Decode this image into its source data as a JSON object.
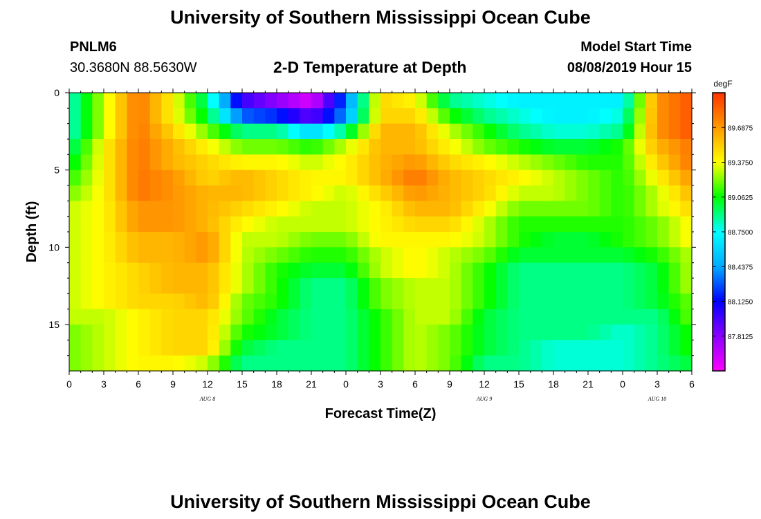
{
  "page": {
    "title_top": "University of Southern Mississippi Ocean Cube",
    "title_bottom": "University of Southern Mississippi Ocean Cube",
    "station_id": "PNLM6",
    "station_coords": "30.3680N 88.5630W",
    "plot_title": "2-D Temperature at Depth",
    "model_start_label": "Model Start Time",
    "model_start_value": "08/08/2019 Hour 15"
  },
  "chart_data": {
    "type": "heatmap",
    "title": "2-D Temperature at Depth",
    "xlabel": "Forecast Time(Z)",
    "ylabel": "Depth (ft)",
    "x_tick_labels": [
      "0",
      "3",
      "6",
      "9",
      "12",
      "15",
      "18",
      "21",
      "0",
      "3",
      "6",
      "9",
      "12",
      "15",
      "18",
      "21",
      "0",
      "3",
      "6"
    ],
    "x_range_hours": [
      0,
      54
    ],
    "date_labels": [
      {
        "label": "AUG 8",
        "hour": 12
      },
      {
        "label": "AUG 9",
        "hour": 36
      },
      {
        "label": "AUG 10",
        "hour": 51
      }
    ],
    "y_tick_labels": [
      "0",
      "5",
      "10",
      "15"
    ],
    "y_range_ft": [
      0,
      18
    ],
    "y_inverted": true,
    "colorbar": {
      "unit": "degF",
      "min": 87.5,
      "max": 90.0,
      "tick_labels": [
        "89.6875",
        "89.3750",
        "89.0625",
        "88.7500",
        "88.4375",
        "88.1250",
        "87.8125"
      ],
      "tick_values": [
        89.6875,
        89.375,
        89.0625,
        88.75,
        88.4375,
        88.125,
        87.8125
      ],
      "colormap": [
        "#ff00ff",
        "#8a00ff",
        "#0000ff",
        "#00aaff",
        "#00ffff",
        "#00ff00",
        "#ffff00",
        "#ff9900",
        "#ff3300"
      ]
    },
    "depth_rows_ft": [
      0.5,
      1.5,
      2.5,
      3.5,
      4.5,
      5.5,
      6.5,
      7.5,
      8.5,
      9.5,
      10.5,
      11.5,
      12.5,
      13.5,
      14.5,
      15.5,
      16.5,
      17.5
    ],
    "time_hours": [
      0,
      3,
      6,
      9,
      12,
      15,
      18,
      21,
      24,
      27,
      30,
      33,
      36,
      39,
      42,
      45,
      48,
      51,
      54
    ],
    "temperature_degF": [
      [
        88.8,
        89.3,
        89.8,
        89.4,
        88.9,
        88.0,
        87.8,
        87.6,
        88.3,
        89.5,
        89.4,
        88.9,
        88.8,
        88.7,
        88.7,
        88.7,
        88.7,
        89.7,
        89.9
      ],
      [
        88.8,
        89.3,
        89.8,
        89.4,
        89.0,
        88.3,
        88.2,
        87.9,
        88.4,
        89.5,
        89.5,
        89.1,
        88.9,
        88.8,
        88.7,
        88.7,
        88.8,
        89.7,
        89.9
      ],
      [
        88.8,
        89.3,
        89.8,
        89.5,
        89.2,
        88.9,
        88.9,
        88.6,
        88.9,
        89.6,
        89.6,
        89.3,
        89.1,
        88.9,
        88.8,
        88.8,
        88.9,
        89.7,
        89.9
      ],
      [
        88.9,
        89.4,
        89.8,
        89.6,
        89.4,
        89.2,
        89.2,
        89.1,
        89.3,
        89.6,
        89.6,
        89.4,
        89.2,
        89.1,
        89.0,
        89.0,
        89.1,
        89.6,
        89.8
      ],
      [
        89.0,
        89.4,
        89.8,
        89.6,
        89.5,
        89.4,
        89.4,
        89.3,
        89.4,
        89.6,
        89.7,
        89.5,
        89.4,
        89.3,
        89.2,
        89.1,
        89.1,
        89.5,
        89.8
      ],
      [
        89.1,
        89.4,
        89.8,
        89.7,
        89.5,
        89.6,
        89.5,
        89.4,
        89.4,
        89.6,
        89.8,
        89.6,
        89.5,
        89.4,
        89.3,
        89.2,
        89.1,
        89.4,
        89.7
      ],
      [
        89.2,
        89.4,
        89.8,
        89.7,
        89.6,
        89.6,
        89.5,
        89.4,
        89.3,
        89.5,
        89.7,
        89.6,
        89.5,
        89.3,
        89.3,
        89.2,
        89.1,
        89.3,
        89.6
      ],
      [
        89.3,
        89.4,
        89.7,
        89.7,
        89.6,
        89.5,
        89.4,
        89.3,
        89.3,
        89.4,
        89.6,
        89.6,
        89.4,
        89.2,
        89.2,
        89.2,
        89.1,
        89.3,
        89.5
      ],
      [
        89.3,
        89.4,
        89.7,
        89.7,
        89.6,
        89.4,
        89.3,
        89.3,
        89.3,
        89.4,
        89.5,
        89.5,
        89.3,
        89.1,
        89.1,
        89.1,
        89.1,
        89.2,
        89.4
      ],
      [
        89.3,
        89.4,
        89.6,
        89.6,
        89.7,
        89.3,
        89.3,
        89.2,
        89.2,
        89.4,
        89.4,
        89.4,
        89.3,
        89.1,
        89.0,
        89.0,
        89.1,
        89.2,
        89.4
      ],
      [
        89.3,
        89.4,
        89.6,
        89.6,
        89.7,
        89.3,
        89.2,
        89.1,
        89.1,
        89.3,
        89.4,
        89.3,
        89.2,
        89.0,
        89.0,
        89.0,
        89.0,
        89.1,
        89.3
      ],
      [
        89.3,
        89.4,
        89.5,
        89.6,
        89.6,
        89.3,
        89.1,
        89.0,
        89.0,
        89.3,
        89.4,
        89.3,
        89.1,
        88.9,
        88.9,
        88.9,
        88.9,
        89.0,
        89.3
      ],
      [
        89.3,
        89.4,
        89.5,
        89.6,
        89.6,
        89.3,
        89.1,
        88.9,
        88.9,
        89.2,
        89.3,
        89.3,
        89.1,
        88.9,
        88.9,
        88.9,
        88.9,
        89.0,
        89.3
      ],
      [
        89.3,
        89.4,
        89.5,
        89.5,
        89.6,
        89.2,
        89.1,
        88.9,
        88.9,
        89.2,
        89.3,
        89.3,
        89.1,
        88.9,
        88.9,
        88.9,
        88.9,
        89.0,
        89.2
      ],
      [
        89.3,
        89.3,
        89.4,
        89.5,
        89.5,
        89.2,
        89.0,
        88.9,
        88.9,
        89.1,
        89.3,
        89.3,
        89.0,
        88.9,
        88.9,
        88.9,
        88.9,
        88.9,
        89.2
      ],
      [
        89.2,
        89.3,
        89.4,
        89.5,
        89.5,
        89.1,
        89.0,
        88.9,
        88.9,
        89.1,
        89.3,
        89.2,
        89.0,
        88.9,
        88.9,
        88.9,
        88.8,
        88.9,
        89.1
      ],
      [
        89.2,
        89.3,
        89.4,
        89.5,
        89.5,
        89.0,
        88.9,
        88.9,
        88.9,
        89.1,
        89.3,
        89.2,
        89.0,
        88.9,
        88.8,
        88.8,
        88.8,
        88.9,
        89.1
      ],
      [
        89.2,
        89.3,
        89.4,
        89.4,
        89.3,
        88.9,
        88.9,
        88.9,
        88.9,
        89.1,
        89.3,
        89.2,
        88.9,
        88.9,
        88.8,
        88.8,
        88.8,
        88.9,
        89.0
      ]
    ]
  }
}
